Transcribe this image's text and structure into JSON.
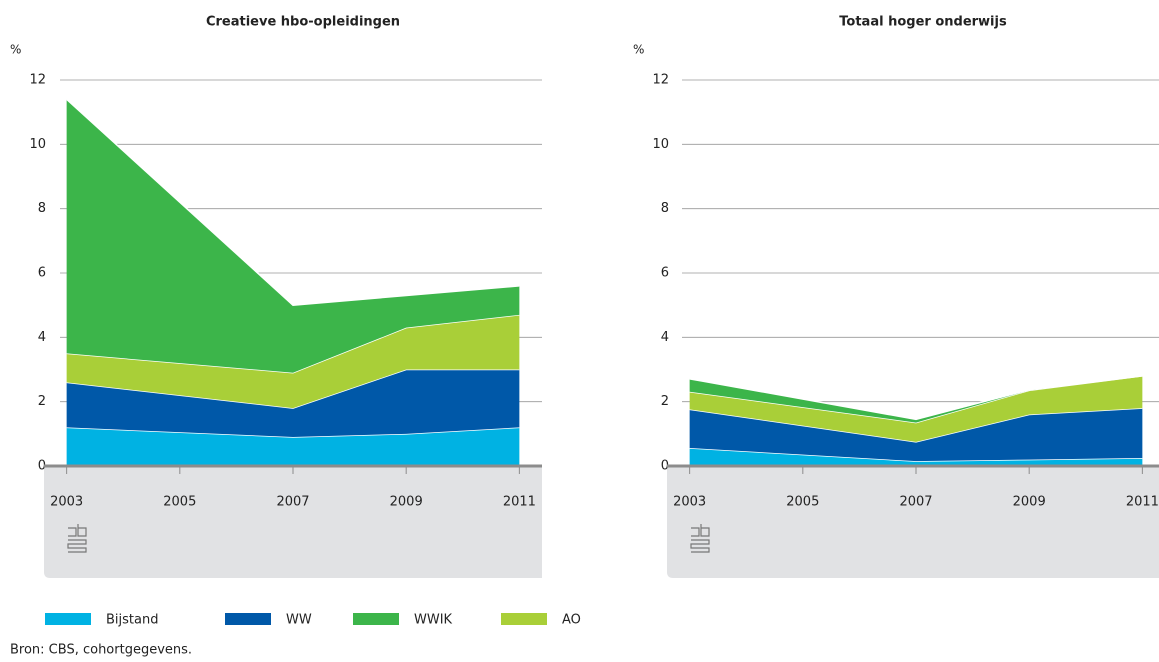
{
  "chart_data": [
    {
      "type": "stacked-area",
      "title": "Creatieve hbo-opleidingen",
      "ylabel": "%",
      "x": [
        2003,
        2007,
        2009,
        2011
      ],
      "series": [
        {
          "name": "Bijstand",
          "color": "#00b2e3",
          "values": [
            1.2,
            0.9,
            1.0,
            1.2
          ]
        },
        {
          "name": "WW",
          "color": "#0058a8",
          "values": [
            1.4,
            0.9,
            2.0,
            1.8
          ]
        },
        {
          "name": "AO",
          "color": "#a9cf38",
          "values": [
            0.9,
            1.1,
            1.3,
            1.7
          ]
        },
        {
          "name": "WWIK",
          "color": "#3cb54a",
          "values": [
            7.9,
            2.1,
            1.0,
            0.9
          ]
        }
      ],
      "xlim": [
        2002.6,
        2011.4
      ],
      "xticks": [
        2003,
        2005,
        2007,
        2009,
        2011
      ],
      "ylim": [
        0,
        12
      ],
      "yticks": [
        0,
        2,
        4,
        6,
        8,
        10,
        12
      ],
      "grid": true
    },
    {
      "type": "stacked-area",
      "title": "Totaal hoger onderwijs",
      "ylabel": "%",
      "x": [
        2003,
        2007,
        2009,
        2011
      ],
      "series": [
        {
          "name": "Bijstand",
          "color": "#00b2e3",
          "values": [
            0.56,
            0.15,
            0.2,
            0.25
          ]
        },
        {
          "name": "WW",
          "color": "#0058a8",
          "values": [
            1.2,
            0.6,
            1.4,
            1.55
          ]
        },
        {
          "name": "AO",
          "color": "#a9cf38",
          "values": [
            0.55,
            0.6,
            0.75,
            1.0
          ]
        },
        {
          "name": "WWIK",
          "color": "#3cb54a",
          "values": [
            0.4,
            0.1,
            0.02,
            0
          ]
        }
      ],
      "xlim": [
        2002.6,
        2011.4
      ],
      "xticks": [
        2003,
        2005,
        2007,
        2009,
        2011
      ],
      "ylim": [
        0,
        12
      ],
      "yticks": [
        0,
        2,
        4,
        6,
        8,
        10,
        12
      ],
      "grid": true
    }
  ],
  "legend_order": [
    0,
    1,
    3,
    2
  ],
  "source": "Bron: CBS, cohortgegevens."
}
